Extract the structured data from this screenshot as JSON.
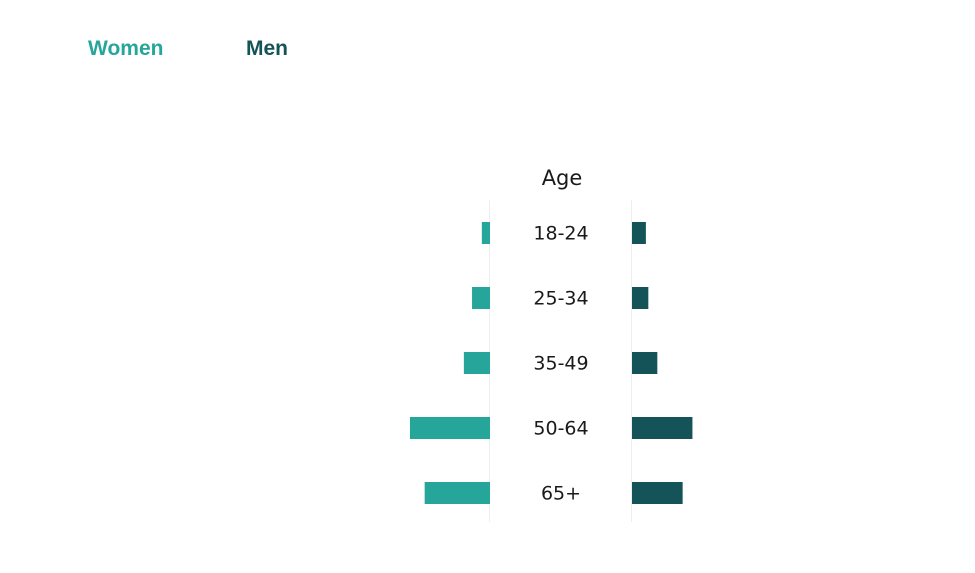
{
  "chart_data": {
    "type": "bar",
    "title": "",
    "axis_title": "Age",
    "categories": [
      "18-24",
      "25-34",
      "35-49",
      "50-64",
      "65+"
    ],
    "series": [
      {
        "name": "Women",
        "values": [
          1.0,
          2.2,
          3.2,
          9.8,
          8.0
        ],
        "color": "#26a69a",
        "side": "left"
      },
      {
        "name": "Men",
        "values": [
          1.7,
          2.0,
          3.1,
          7.4,
          6.2
        ],
        "color": "#145459",
        "side": "right"
      }
    ],
    "xlim": [
      0,
      12
    ],
    "grid": false,
    "legend_placement": "top-left"
  }
}
